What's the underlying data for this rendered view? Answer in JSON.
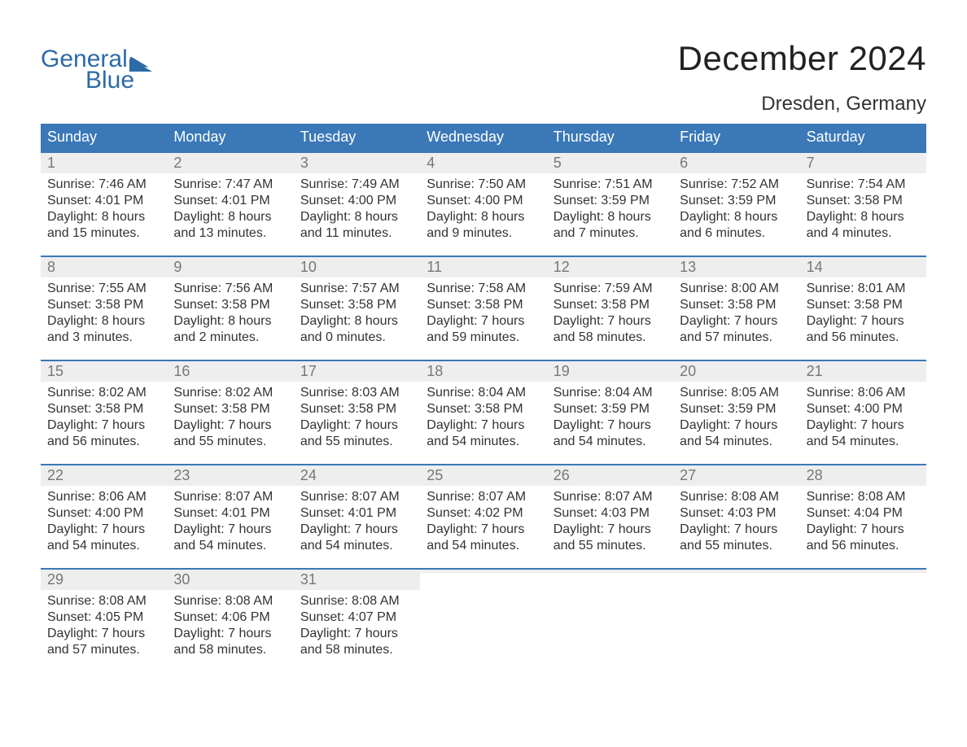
{
  "branding": {
    "logo_word_1": "General",
    "logo_word_2": "Blue",
    "logo_color": "#2d6aa8",
    "flag_color": "#2d6aa8"
  },
  "header": {
    "month_title": "December 2024",
    "location": "Dresden, Germany"
  },
  "colors": {
    "header_bg": "#3a78b8",
    "header_fg": "#ffffff",
    "row_accent": "#3a78b8",
    "daynum_bg": "#eeeeee",
    "daynum_fg": "#777777",
    "body_text": "#333333",
    "page_bg": "#ffffff"
  },
  "typography": {
    "title_fontsize": 42,
    "location_fontsize": 24,
    "dow_fontsize": 18,
    "daynum_fontsize": 18,
    "body_fontsize": 16,
    "font_family": "Arial"
  },
  "days_of_week": [
    "Sunday",
    "Monday",
    "Tuesday",
    "Wednesday",
    "Thursday",
    "Friday",
    "Saturday"
  ],
  "weeks": [
    [
      {
        "num": "1",
        "sunrise": "Sunrise: 7:46 AM",
        "sunset": "Sunset: 4:01 PM",
        "daylight1": "Daylight: 8 hours",
        "daylight2": "and 15 minutes."
      },
      {
        "num": "2",
        "sunrise": "Sunrise: 7:47 AM",
        "sunset": "Sunset: 4:01 PM",
        "daylight1": "Daylight: 8 hours",
        "daylight2": "and 13 minutes."
      },
      {
        "num": "3",
        "sunrise": "Sunrise: 7:49 AM",
        "sunset": "Sunset: 4:00 PM",
        "daylight1": "Daylight: 8 hours",
        "daylight2": "and 11 minutes."
      },
      {
        "num": "4",
        "sunrise": "Sunrise: 7:50 AM",
        "sunset": "Sunset: 4:00 PM",
        "daylight1": "Daylight: 8 hours",
        "daylight2": "and 9 minutes."
      },
      {
        "num": "5",
        "sunrise": "Sunrise: 7:51 AM",
        "sunset": "Sunset: 3:59 PM",
        "daylight1": "Daylight: 8 hours",
        "daylight2": "and 7 minutes."
      },
      {
        "num": "6",
        "sunrise": "Sunrise: 7:52 AM",
        "sunset": "Sunset: 3:59 PM",
        "daylight1": "Daylight: 8 hours",
        "daylight2": "and 6 minutes."
      },
      {
        "num": "7",
        "sunrise": "Sunrise: 7:54 AM",
        "sunset": "Sunset: 3:58 PM",
        "daylight1": "Daylight: 8 hours",
        "daylight2": "and 4 minutes."
      }
    ],
    [
      {
        "num": "8",
        "sunrise": "Sunrise: 7:55 AM",
        "sunset": "Sunset: 3:58 PM",
        "daylight1": "Daylight: 8 hours",
        "daylight2": "and 3 minutes."
      },
      {
        "num": "9",
        "sunrise": "Sunrise: 7:56 AM",
        "sunset": "Sunset: 3:58 PM",
        "daylight1": "Daylight: 8 hours",
        "daylight2": "and 2 minutes."
      },
      {
        "num": "10",
        "sunrise": "Sunrise: 7:57 AM",
        "sunset": "Sunset: 3:58 PM",
        "daylight1": "Daylight: 8 hours",
        "daylight2": "and 0 minutes."
      },
      {
        "num": "11",
        "sunrise": "Sunrise: 7:58 AM",
        "sunset": "Sunset: 3:58 PM",
        "daylight1": "Daylight: 7 hours",
        "daylight2": "and 59 minutes."
      },
      {
        "num": "12",
        "sunrise": "Sunrise: 7:59 AM",
        "sunset": "Sunset: 3:58 PM",
        "daylight1": "Daylight: 7 hours",
        "daylight2": "and 58 minutes."
      },
      {
        "num": "13",
        "sunrise": "Sunrise: 8:00 AM",
        "sunset": "Sunset: 3:58 PM",
        "daylight1": "Daylight: 7 hours",
        "daylight2": "and 57 minutes."
      },
      {
        "num": "14",
        "sunrise": "Sunrise: 8:01 AM",
        "sunset": "Sunset: 3:58 PM",
        "daylight1": "Daylight: 7 hours",
        "daylight2": "and 56 minutes."
      }
    ],
    [
      {
        "num": "15",
        "sunrise": "Sunrise: 8:02 AM",
        "sunset": "Sunset: 3:58 PM",
        "daylight1": "Daylight: 7 hours",
        "daylight2": "and 56 minutes."
      },
      {
        "num": "16",
        "sunrise": "Sunrise: 8:02 AM",
        "sunset": "Sunset: 3:58 PM",
        "daylight1": "Daylight: 7 hours",
        "daylight2": "and 55 minutes."
      },
      {
        "num": "17",
        "sunrise": "Sunrise: 8:03 AM",
        "sunset": "Sunset: 3:58 PM",
        "daylight1": "Daylight: 7 hours",
        "daylight2": "and 55 minutes."
      },
      {
        "num": "18",
        "sunrise": "Sunrise: 8:04 AM",
        "sunset": "Sunset: 3:58 PM",
        "daylight1": "Daylight: 7 hours",
        "daylight2": "and 54 minutes."
      },
      {
        "num": "19",
        "sunrise": "Sunrise: 8:04 AM",
        "sunset": "Sunset: 3:59 PM",
        "daylight1": "Daylight: 7 hours",
        "daylight2": "and 54 minutes."
      },
      {
        "num": "20",
        "sunrise": "Sunrise: 8:05 AM",
        "sunset": "Sunset: 3:59 PM",
        "daylight1": "Daylight: 7 hours",
        "daylight2": "and 54 minutes."
      },
      {
        "num": "21",
        "sunrise": "Sunrise: 8:06 AM",
        "sunset": "Sunset: 4:00 PM",
        "daylight1": "Daylight: 7 hours",
        "daylight2": "and 54 minutes."
      }
    ],
    [
      {
        "num": "22",
        "sunrise": "Sunrise: 8:06 AM",
        "sunset": "Sunset: 4:00 PM",
        "daylight1": "Daylight: 7 hours",
        "daylight2": "and 54 minutes."
      },
      {
        "num": "23",
        "sunrise": "Sunrise: 8:07 AM",
        "sunset": "Sunset: 4:01 PM",
        "daylight1": "Daylight: 7 hours",
        "daylight2": "and 54 minutes."
      },
      {
        "num": "24",
        "sunrise": "Sunrise: 8:07 AM",
        "sunset": "Sunset: 4:01 PM",
        "daylight1": "Daylight: 7 hours",
        "daylight2": "and 54 minutes."
      },
      {
        "num": "25",
        "sunrise": "Sunrise: 8:07 AM",
        "sunset": "Sunset: 4:02 PM",
        "daylight1": "Daylight: 7 hours",
        "daylight2": "and 54 minutes."
      },
      {
        "num": "26",
        "sunrise": "Sunrise: 8:07 AM",
        "sunset": "Sunset: 4:03 PM",
        "daylight1": "Daylight: 7 hours",
        "daylight2": "and 55 minutes."
      },
      {
        "num": "27",
        "sunrise": "Sunrise: 8:08 AM",
        "sunset": "Sunset: 4:03 PM",
        "daylight1": "Daylight: 7 hours",
        "daylight2": "and 55 minutes."
      },
      {
        "num": "28",
        "sunrise": "Sunrise: 8:08 AM",
        "sunset": "Sunset: 4:04 PM",
        "daylight1": "Daylight: 7 hours",
        "daylight2": "and 56 minutes."
      }
    ],
    [
      {
        "num": "29",
        "sunrise": "Sunrise: 8:08 AM",
        "sunset": "Sunset: 4:05 PM",
        "daylight1": "Daylight: 7 hours",
        "daylight2": "and 57 minutes."
      },
      {
        "num": "30",
        "sunrise": "Sunrise: 8:08 AM",
        "sunset": "Sunset: 4:06 PM",
        "daylight1": "Daylight: 7 hours",
        "daylight2": "and 58 minutes."
      },
      {
        "num": "31",
        "sunrise": "Sunrise: 8:08 AM",
        "sunset": "Sunset: 4:07 PM",
        "daylight1": "Daylight: 7 hours",
        "daylight2": "and 58 minutes."
      },
      {
        "empty": true,
        "num": " ",
        "sunrise": "",
        "sunset": "",
        "daylight1": "",
        "daylight2": ""
      },
      {
        "empty": true,
        "num": " ",
        "sunrise": "",
        "sunset": "",
        "daylight1": "",
        "daylight2": ""
      },
      {
        "empty": true,
        "num": " ",
        "sunrise": "",
        "sunset": "",
        "daylight1": "",
        "daylight2": ""
      },
      {
        "empty": true,
        "num": " ",
        "sunrise": "",
        "sunset": "",
        "daylight1": "",
        "daylight2": ""
      }
    ]
  ]
}
